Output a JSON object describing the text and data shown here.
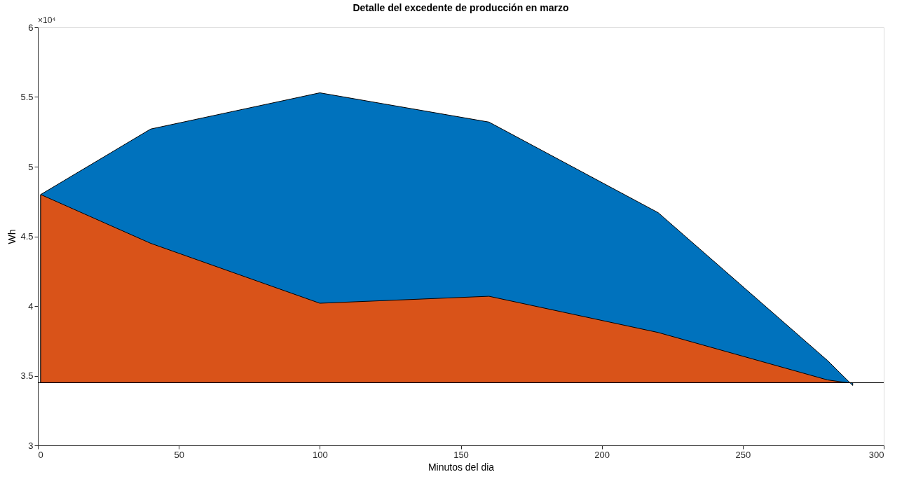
{
  "chart_data": {
    "type": "area",
    "title": "Detalle del excedente de producción en marzo",
    "xlabel": "Minutos del dia",
    "ylabel": "Wh",
    "series": [
      {
        "color": "#0072bd",
        "x": [
          1,
          40,
          100,
          160,
          220,
          280,
          289
        ],
        "values": [
          4.8,
          5.27,
          5.53,
          5.32,
          4.67,
          3.61,
          3.43
        ]
      },
      {
        "color": "#d95319",
        "x": [
          1,
          40,
          100,
          160,
          220,
          280,
          287
        ],
        "values": [
          4.8,
          4.45,
          4.02,
          4.07,
          3.81,
          3.47,
          3.45
        ]
      }
    ],
    "ref_lines": [
      {
        "axis": "y",
        "value": 3.45,
        "color": "#000000"
      }
    ],
    "annotations": [
      "×10⁴"
    ],
    "xlim": [
      0,
      300
    ],
    "xticks": [
      0,
      50,
      100,
      150,
      200,
      250,
      300
    ],
    "ylim": [
      3,
      6
    ],
    "yticks": [
      3,
      3.5,
      4,
      4.5,
      5,
      5.5,
      6
    ],
    "grid": false,
    "legend": false
  }
}
